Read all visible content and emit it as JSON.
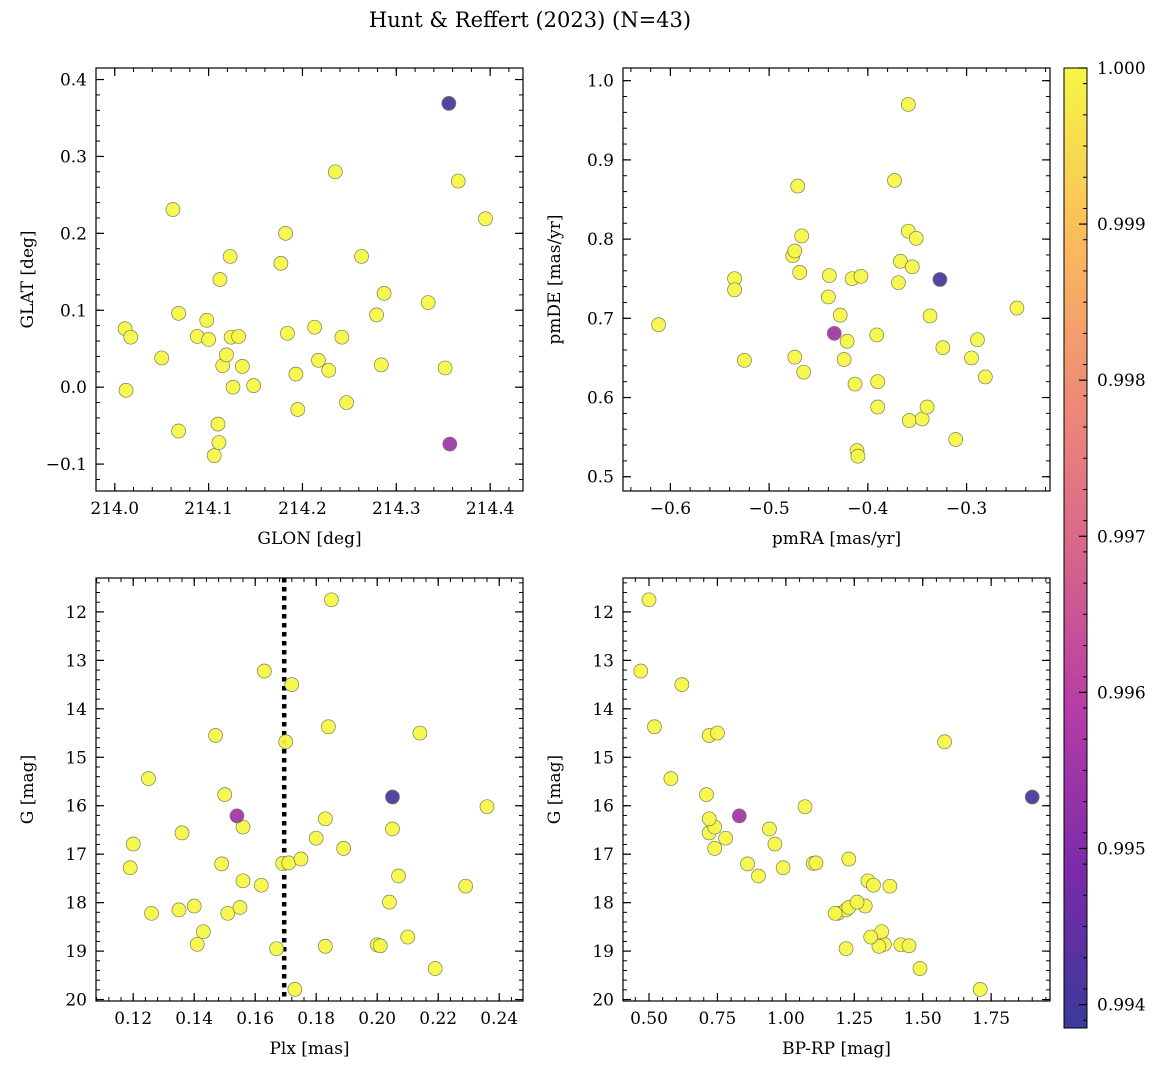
{
  "chart_data": {
    "title": "Hunt & Reffert (2023) (N=43)",
    "type": "scatter",
    "colorbar": {
      "colormap": "plasma",
      "range": [
        0.99385,
        1.0
      ],
      "ticks": [
        0.994,
        0.995,
        0.996,
        0.997,
        0.998,
        0.999,
        1.0
      ],
      "tick_labels": [
        "0.994",
        "0.995",
        "0.996",
        "0.997",
        "0.998",
        "0.999",
        "1.000"
      ]
    },
    "panels": [
      {
        "id": "glon-glat",
        "xlabel": "GLON [deg]",
        "ylabel": "GLAT [deg]",
        "xlim": [
          213.98,
          214.435
        ],
        "ylim": [
          -0.135,
          0.415
        ],
        "xticks": [
          214.0,
          214.1,
          214.2,
          214.3,
          214.4
        ],
        "xtick_labels": [
          "214.0",
          "214.1",
          "214.2",
          "214.3",
          "214.4"
        ],
        "yticks": [
          -0.1,
          0.0,
          0.1,
          0.2,
          0.3,
          0.4
        ],
        "ytick_labels": [
          "−0.1",
          "0.0",
          "0.1",
          "0.2",
          "0.3",
          "0.4"
        ],
        "y_inverted": false
      },
      {
        "id": "pmra-pmde",
        "xlabel": "pmRA [mas/yr]",
        "ylabel": "pmDE [mas/yr]",
        "xlim": [
          -0.648,
          -0.2155
        ],
        "ylim": [
          0.482,
          1.016
        ],
        "xticks": [
          -0.6,
          -0.5,
          -0.4,
          -0.3
        ],
        "xtick_labels": [
          "−0.6",
          "−0.5",
          "−0.4",
          "−0.3"
        ],
        "yticks": [
          0.5,
          0.6,
          0.7,
          0.8,
          0.9,
          1.0
        ],
        "ytick_labels": [
          "0.5",
          "0.6",
          "0.7",
          "0.8",
          "0.9",
          "1.0"
        ],
        "y_inverted": false
      },
      {
        "id": "plx-g",
        "xlabel": "Plx [mas]",
        "ylabel": "G [mag]",
        "xlim": [
          0.1078,
          0.2478
        ],
        "ylim": [
          20.03,
          11.3
        ],
        "xticks": [
          0.12,
          0.14,
          0.16,
          0.18,
          0.2,
          0.22,
          0.24
        ],
        "xtick_labels": [
          "0.12",
          "0.14",
          "0.16",
          "0.18",
          "0.20",
          "0.22",
          "0.24"
        ],
        "yticks": [
          12,
          13,
          14,
          15,
          16,
          17,
          18,
          19,
          20
        ],
        "ytick_labels": [
          "12",
          "13",
          "14",
          "15",
          "16",
          "17",
          "18",
          "19",
          "20"
        ],
        "y_inverted": true,
        "vline": {
          "x": 0.1695,
          "style": "dotted"
        }
      },
      {
        "id": "bprp-g",
        "xlabel": "BP-RP [mag]",
        "ylabel": "G [mag]",
        "xlim": [
          0.405,
          1.965
        ],
        "ylim": [
          20.03,
          11.3
        ],
        "xticks": [
          0.5,
          0.75,
          1.0,
          1.25,
          1.5,
          1.75
        ],
        "xtick_labels": [
          "0.50",
          "0.75",
          "1.00",
          "1.25",
          "1.50",
          "1.75"
        ],
        "yticks": [
          12,
          13,
          14,
          15,
          16,
          17,
          18,
          19,
          20
        ],
        "ytick_labels": [
          "12",
          "13",
          "14",
          "15",
          "16",
          "17",
          "18",
          "19",
          "20"
        ],
        "y_inverted": true
      }
    ],
    "stars": [
      {
        "glon": 214.356,
        "glat": 0.369,
        "pmra": -0.327,
        "pmde": 0.749,
        "plx": 0.205,
        "g": 15.82,
        "bprp": 1.9,
        "prob": 0.994
      },
      {
        "glon": 214.357,
        "glat": -0.074,
        "pmra": -0.434,
        "pmde": 0.681,
        "plx": 0.154,
        "g": 16.21,
        "bprp": 0.83,
        "prob": 0.9955
      },
      {
        "glon": 214.011,
        "glat": 0.076,
        "pmra": -0.612,
        "pmde": 0.692,
        "plx": 0.125,
        "g": 15.44,
        "bprp": 0.58,
        "prob": 1.0
      },
      {
        "glon": 214.012,
        "glat": -0.004,
        "pmra": -0.535,
        "pmde": 0.75,
        "plx": 0.119,
        "g": 17.28,
        "bprp": 0.99,
        "prob": 1.0
      },
      {
        "glon": 214.017,
        "glat": 0.065,
        "pmra": -0.535,
        "pmde": 0.736,
        "plx": 0.12,
        "g": 16.79,
        "bprp": 0.96,
        "prob": 1.0
      },
      {
        "glon": 214.05,
        "glat": 0.038,
        "pmra": -0.525,
        "pmde": 0.647,
        "plx": 0.126,
        "g": 18.22,
        "bprp": 1.19,
        "prob": 1.0
      },
      {
        "glon": 214.062,
        "glat": 0.231,
        "pmra": -0.476,
        "pmde": 0.779,
        "plx": 0.136,
        "g": 16.56,
        "bprp": 0.72,
        "prob": 1.0
      },
      {
        "glon": 214.068,
        "glat": 0.096,
        "pmra": -0.474,
        "pmde": 0.785,
        "plx": 0.135,
        "g": 18.15,
        "bprp": 1.22,
        "prob": 1.0
      },
      {
        "glon": 214.068,
        "glat": -0.057,
        "pmra": -0.474,
        "pmde": 0.651,
        "plx": 0.14,
        "g": 18.07,
        "bprp": 1.29,
        "prob": 1.0
      },
      {
        "glon": 214.088,
        "glat": 0.066,
        "pmra": -0.471,
        "pmde": 0.867,
        "plx": 0.141,
        "g": 18.86,
        "bprp": 1.36,
        "prob": 1.0
      },
      {
        "glon": 214.098,
        "glat": 0.087,
        "pmra": -0.469,
        "pmde": 0.758,
        "plx": 0.143,
        "g": 18.6,
        "bprp": 1.35,
        "prob": 1.0
      },
      {
        "glon": 214.1,
        "glat": 0.062,
        "pmra": -0.467,
        "pmde": 0.804,
        "plx": 0.147,
        "g": 14.55,
        "bprp": 0.72,
        "prob": 1.0
      },
      {
        "glon": 214.106,
        "glat": -0.089,
        "pmra": -0.465,
        "pmde": 0.632,
        "plx": 0.149,
        "g": 17.2,
        "bprp": 0.86,
        "prob": 1.0
      },
      {
        "glon": 214.11,
        "glat": -0.048,
        "pmra": -0.439,
        "pmde": 0.754,
        "plx": 0.15,
        "g": 15.77,
        "bprp": 0.71,
        "prob": 1.0
      },
      {
        "glon": 214.111,
        "glat": -0.072,
        "pmra": -0.44,
        "pmde": 0.727,
        "plx": 0.151,
        "g": 18.22,
        "bprp": 1.18,
        "prob": 1.0
      },
      {
        "glon": 214.112,
        "glat": 0.14,
        "pmra": -0.428,
        "pmde": 0.704,
        "plx": 0.155,
        "g": 18.1,
        "bprp": 1.23,
        "prob": 1.0
      },
      {
        "glon": 214.115,
        "glat": 0.028,
        "pmra": -0.424,
        "pmde": 0.648,
        "plx": 0.156,
        "g": 16.44,
        "bprp": 0.74,
        "prob": 1.0
      },
      {
        "glon": 214.119,
        "glat": 0.042,
        "pmra": -0.421,
        "pmde": 0.671,
        "plx": 0.156,
        "g": 17.55,
        "bprp": 1.3,
        "prob": 1.0
      },
      {
        "glon": 214.123,
        "glat": 0.17,
        "pmra": -0.416,
        "pmde": 0.75,
        "plx": 0.162,
        "g": 17.64,
        "bprp": 1.32,
        "prob": 1.0
      },
      {
        "glon": 214.124,
        "glat": 0.065,
        "pmra": -0.413,
        "pmde": 0.617,
        "plx": 0.163,
        "g": 13.22,
        "bprp": 0.47,
        "prob": 1.0
      },
      {
        "glon": 214.126,
        "glat": 0.0,
        "pmra": -0.411,
        "pmde": 0.533,
        "plx": 0.167,
        "g": 18.95,
        "bprp": 1.22,
        "prob": 1.0
      },
      {
        "glon": 214.132,
        "glat": 0.066,
        "pmra": -0.41,
        "pmde": 0.526,
        "plx": 0.169,
        "g": 17.19,
        "bprp": 1.1,
        "prob": 1.0
      },
      {
        "glon": 214.136,
        "glat": 0.027,
        "pmra": -0.407,
        "pmde": 0.753,
        "plx": 0.17,
        "g": 14.68,
        "bprp": 1.58,
        "prob": 1.0
      },
      {
        "glon": 214.148,
        "glat": 0.002,
        "pmra": -0.391,
        "pmde": 0.679,
        "plx": 0.171,
        "g": 17.18,
        "bprp": 1.11,
        "prob": 1.0
      },
      {
        "glon": 214.177,
        "glat": 0.161,
        "pmra": -0.39,
        "pmde": 0.62,
        "plx": 0.172,
        "g": 13.5,
        "bprp": 0.62,
        "prob": 1.0
      },
      {
        "glon": 214.182,
        "glat": 0.2,
        "pmra": -0.39,
        "pmde": 0.588,
        "plx": 0.173,
        "g": 19.79,
        "bprp": 1.71,
        "prob": 1.0
      },
      {
        "glon": 214.184,
        "glat": 0.07,
        "pmra": -0.373,
        "pmde": 0.874,
        "plx": 0.175,
        "g": 17.1,
        "bprp": 1.23,
        "prob": 1.0
      },
      {
        "glon": 214.193,
        "glat": 0.017,
        "pmra": -0.369,
        "pmde": 0.745,
        "plx": 0.18,
        "g": 16.67,
        "bprp": 0.78,
        "prob": 1.0
      },
      {
        "glon": 214.195,
        "glat": -0.029,
        "pmra": -0.367,
        "pmde": 0.772,
        "plx": 0.183,
        "g": 16.27,
        "bprp": 0.72,
        "prob": 1.0
      },
      {
        "glon": 214.213,
        "glat": 0.078,
        "pmra": -0.359,
        "pmde": 0.97,
        "plx": 0.184,
        "g": 14.37,
        "bprp": 0.52,
        "prob": 1.0
      },
      {
        "glon": 214.217,
        "glat": 0.035,
        "pmra": -0.359,
        "pmde": 0.81,
        "plx": 0.183,
        "g": 18.9,
        "bprp": 1.34,
        "prob": 1.0
      },
      {
        "glon": 214.228,
        "glat": 0.022,
        "pmra": -0.358,
        "pmde": 0.571,
        "plx": 0.185,
        "g": 11.75,
        "bprp": 0.5,
        "prob": 1.0
      },
      {
        "glon": 214.235,
        "glat": 0.28,
        "pmra": -0.355,
        "pmde": 0.765,
        "plx": 0.189,
        "g": 16.88,
        "bprp": 0.74,
        "prob": 1.0
      },
      {
        "glon": 214.242,
        "glat": 0.065,
        "pmra": -0.351,
        "pmde": 0.801,
        "plx": 0.2,
        "g": 18.87,
        "bprp": 1.42,
        "prob": 1.0
      },
      {
        "glon": 214.247,
        "glat": -0.02,
        "pmra": -0.345,
        "pmde": 0.573,
        "plx": 0.201,
        "g": 18.89,
        "bprp": 1.45,
        "prob": 1.0
      },
      {
        "glon": 214.263,
        "glat": 0.17,
        "pmra": -0.34,
        "pmde": 0.588,
        "plx": 0.204,
        "g": 17.99,
        "bprp": 1.26,
        "prob": 1.0
      },
      {
        "glon": 214.279,
        "glat": 0.094,
        "pmra": -0.337,
        "pmde": 0.703,
        "plx": 0.205,
        "g": 16.48,
        "bprp": 0.94,
        "prob": 1.0
      },
      {
        "glon": 214.284,
        "glat": 0.029,
        "pmra": -0.324,
        "pmde": 0.663,
        "plx": 0.207,
        "g": 17.45,
        "bprp": 0.9,
        "prob": 1.0
      },
      {
        "glon": 214.287,
        "glat": 0.122,
        "pmra": -0.311,
        "pmde": 0.547,
        "plx": 0.21,
        "g": 18.71,
        "bprp": 1.31,
        "prob": 1.0
      },
      {
        "glon": 214.334,
        "glat": 0.11,
        "pmra": -0.295,
        "pmde": 0.65,
        "plx": 0.214,
        "g": 14.5,
        "bprp": 0.75,
        "prob": 1.0
      },
      {
        "glon": 214.352,
        "glat": 0.025,
        "pmra": -0.289,
        "pmde": 0.673,
        "plx": 0.219,
        "g": 19.36,
        "bprp": 1.49,
        "prob": 1.0
      },
      {
        "glon": 214.366,
        "glat": 0.268,
        "pmra": -0.281,
        "pmde": 0.626,
        "plx": 0.229,
        "g": 17.66,
        "bprp": 1.38,
        "prob": 1.0
      },
      {
        "glon": 214.395,
        "glat": 0.219,
        "pmra": -0.249,
        "pmde": 0.713,
        "plx": 0.236,
        "g": 16.02,
        "bprp": 1.07,
        "prob": 1.0
      }
    ]
  }
}
